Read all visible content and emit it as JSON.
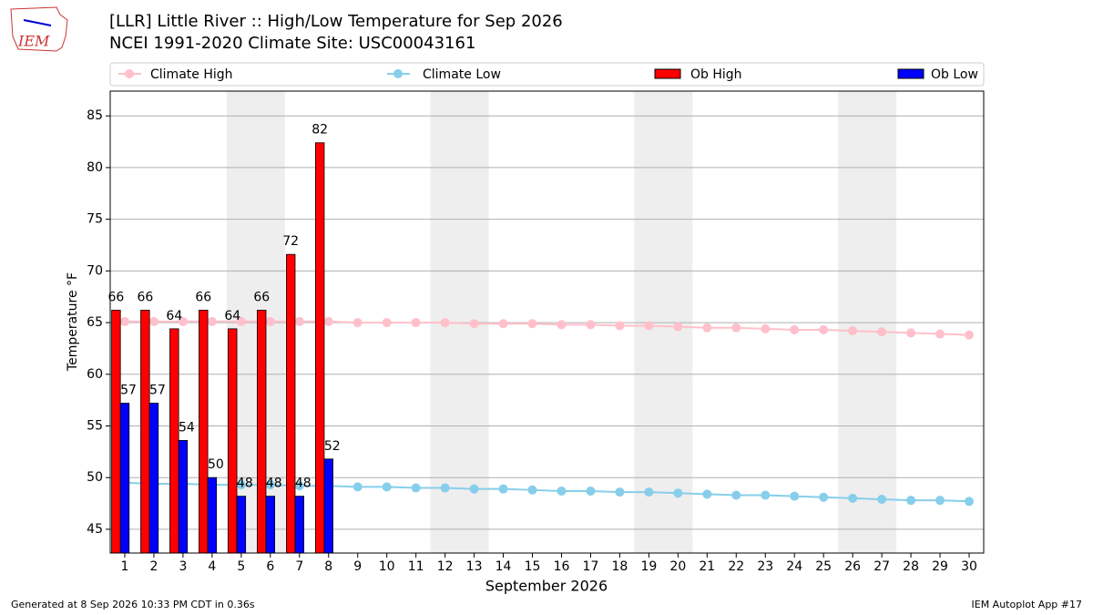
{
  "chart_data": {
    "type": "bar_line",
    "title": "[LLR] Little River :: High/Low Temperature for Sep 2026",
    "subtitle": "NCEI 1991-2020 Climate Site: USC00043161",
    "logo_text": "IEM",
    "xlabel": "September 2026",
    "ylabel": "Temperature °F",
    "footer_left": "Generated at 8 Sep 2026 10:33 PM CDT in 0.36s",
    "footer_right": "IEM Autoplot App #17",
    "x": [
      1,
      2,
      3,
      4,
      5,
      6,
      7,
      8,
      9,
      10,
      11,
      12,
      13,
      14,
      15,
      16,
      17,
      18,
      19,
      20,
      21,
      22,
      23,
      24,
      25,
      26,
      27,
      28,
      29,
      30
    ],
    "xlim": [
      0.5,
      30.5
    ],
    "xticks": [
      1,
      2,
      3,
      4,
      5,
      6,
      7,
      8,
      9,
      10,
      11,
      12,
      13,
      14,
      15,
      16,
      17,
      18,
      19,
      20,
      21,
      22,
      23,
      24,
      25,
      26,
      27,
      28,
      29,
      30
    ],
    "ylim": [
      42.7,
      87.4
    ],
    "yticks": [
      45,
      50,
      55,
      60,
      65,
      70,
      75,
      80,
      85
    ],
    "grid": true,
    "shaded_spans": [
      [
        4.5,
        6.5
      ],
      [
        11.5,
        13.5
      ],
      [
        18.5,
        20.5
      ],
      [
        25.5,
        27.5
      ]
    ],
    "shade_color": "#eeeeee",
    "series": [
      {
        "name": "Climate High",
        "kind": "line",
        "color": "#ffc0cb",
        "values": [
          65.1,
          65.1,
          65.1,
          65.1,
          65.1,
          65.1,
          65.1,
          65.1,
          65.0,
          65.0,
          65.0,
          65.0,
          64.9,
          64.9,
          64.9,
          64.8,
          64.8,
          64.7,
          64.7,
          64.6,
          64.5,
          64.5,
          64.4,
          64.3,
          64.3,
          64.2,
          64.1,
          64.0,
          63.9,
          63.8
        ]
      },
      {
        "name": "Climate Low",
        "kind": "line",
        "color": "#87ceeb",
        "values": [
          49.5,
          49.4,
          49.4,
          49.3,
          49.3,
          49.3,
          49.2,
          49.2,
          49.1,
          49.1,
          49.0,
          49.0,
          48.9,
          48.9,
          48.8,
          48.7,
          48.7,
          48.6,
          48.6,
          48.5,
          48.4,
          48.3,
          48.3,
          48.2,
          48.1,
          48.0,
          47.9,
          47.8,
          47.8,
          47.7
        ]
      },
      {
        "name": "Ob High",
        "kind": "bar",
        "color": "#ff0000",
        "values": [
          66.2,
          66.2,
          64.4,
          66.2,
          64.4,
          66.2,
          71.6,
          82.4,
          null,
          null,
          null,
          null,
          null,
          null,
          null,
          null,
          null,
          null,
          null,
          null,
          null,
          null,
          null,
          null,
          null,
          null,
          null,
          null,
          null,
          null
        ],
        "value_labels": [
          "66",
          "66",
          "64",
          "66",
          "64",
          "66",
          "72",
          "82",
          null,
          null,
          null,
          null,
          null,
          null,
          null,
          null,
          null,
          null,
          null,
          null,
          null,
          null,
          null,
          null,
          null,
          null,
          null,
          null,
          null,
          null
        ]
      },
      {
        "name": "Ob Low",
        "kind": "bar",
        "color": "#0000ff",
        "values": [
          57.2,
          57.2,
          53.6,
          50.0,
          48.2,
          48.2,
          48.2,
          51.8,
          null,
          null,
          null,
          null,
          null,
          null,
          null,
          null,
          null,
          null,
          null,
          null,
          null,
          null,
          null,
          null,
          null,
          null,
          null,
          null,
          null,
          null
        ],
        "value_labels": [
          "57",
          "57",
          "54",
          "50",
          "48",
          "48",
          "48",
          "52",
          null,
          null,
          null,
          null,
          null,
          null,
          null,
          null,
          null,
          null,
          null,
          null,
          null,
          null,
          null,
          null,
          null,
          null,
          null,
          null,
          null,
          null
        ]
      }
    ]
  }
}
